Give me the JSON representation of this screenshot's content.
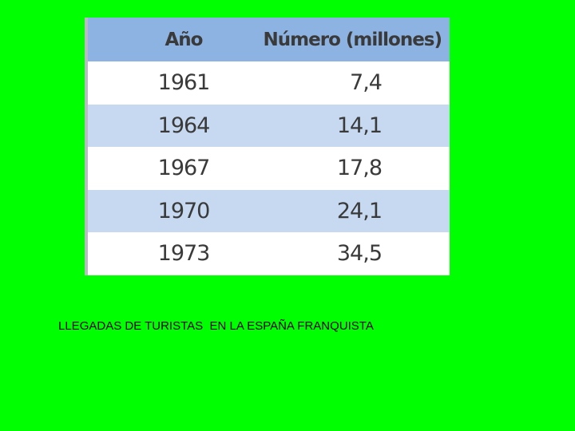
{
  "table": {
    "header": [
      "Año",
      "Número (millones)"
    ],
    "rows": [
      [
        "1961",
        "7,4"
      ],
      [
        "1964",
        "14,1"
      ],
      [
        "1967",
        "17,8"
      ],
      [
        "1970",
        "24,1"
      ],
      [
        "1973",
        "34,5"
      ]
    ]
  },
  "caption": "LLEGADAS DE TURISTAS  EN LA ESPAÑA FRANQUISTA"
}
